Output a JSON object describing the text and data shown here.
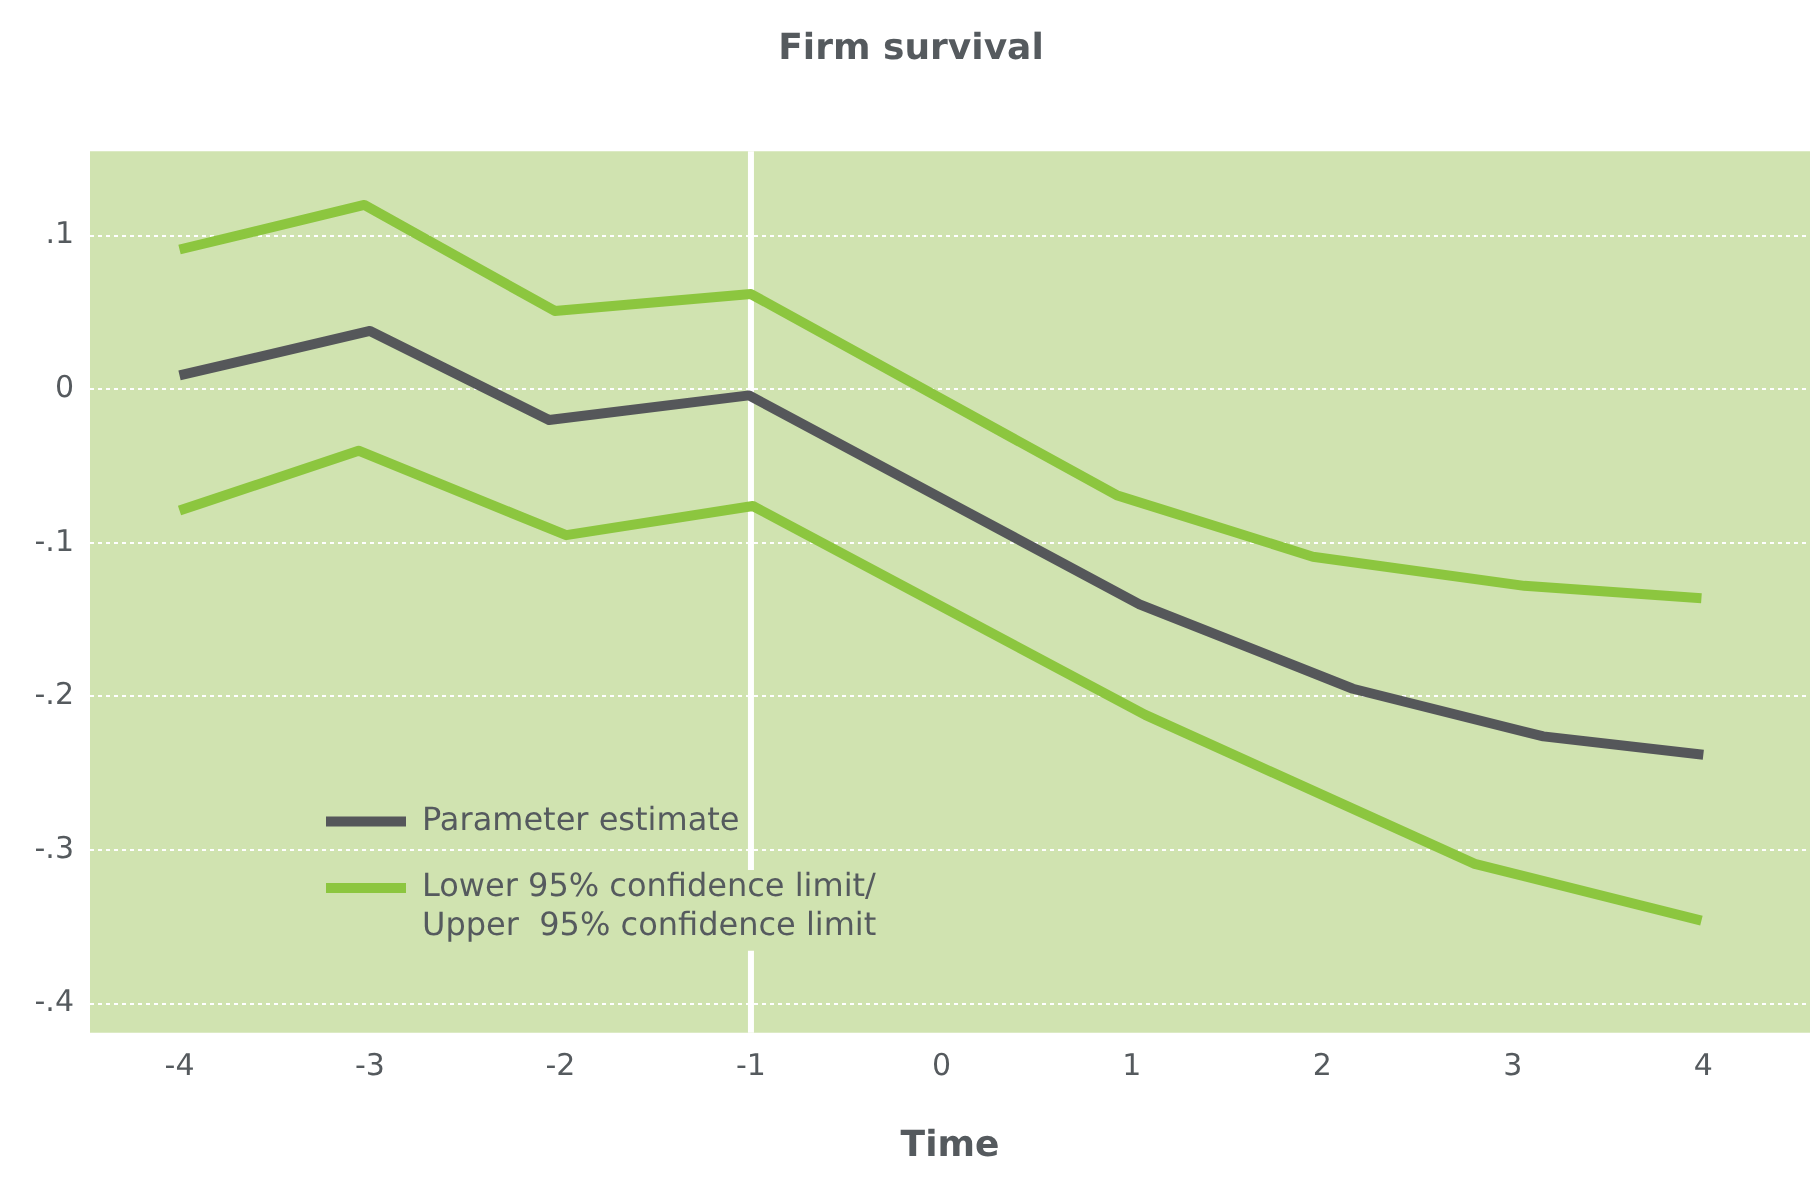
{
  "chart_data": {
    "type": "line",
    "title": "Firm survival",
    "xlabel": "Time",
    "xlim": [
      -4.47,
      4.56
    ],
    "xticks": [
      -4,
      -3,
      -2,
      -1,
      0,
      1,
      2,
      3,
      4
    ],
    "ylim": [
      -0.419,
      0.155
    ],
    "yticks": [
      {
        "value": 0.1,
        "label": ".1"
      },
      {
        "value": 0,
        "label": "0"
      },
      {
        "value": -0.1,
        "label": "-.1"
      },
      {
        "value": -0.2,
        "label": "-.2"
      },
      {
        "value": -0.3,
        "label": "-.3"
      },
      {
        "value": -0.4,
        "label": "-.4"
      }
    ],
    "grid": "y",
    "legend": "bottom left",
    "marker": "none",
    "line_style": "solid",
    "ref_lines": [
      {
        "axis": "x",
        "value": -1,
        "color": "#ffffff"
      }
    ],
    "series": [
      {
        "name": "Parameter estimate",
        "color": "#55575a",
        "x": [
          -4,
          -3,
          -2.06,
          -1.01,
          1.04,
          2.16,
          3.16,
          4
        ],
        "values": [
          0.009,
          0.038,
          -0.02,
          -0.004,
          -0.14,
          -0.195,
          -0.226,
          -0.238
        ]
      },
      {
        "name": "Lower 95% confidence limit/\nUpper  95% confidence limit",
        "color": "#8cc63f",
        "x": [
          -4,
          -3.06,
          -1.97,
          -0.99,
          1.07,
          2.8,
          3.99
        ],
        "values": [
          -0.079,
          -0.04,
          -0.095,
          -0.076,
          -0.212,
          -0.309,
          -0.346
        ]
      },
      {
        "color": "#8cc63f",
        "x": [
          -4,
          -3.03,
          -2.03,
          -1,
          0.92,
          1.95,
          3.06,
          3.99
        ],
        "values": [
          0.091,
          0.12,
          0.051,
          0.062,
          -0.069,
          -0.109,
          -0.128,
          -0.136
        ]
      }
    ]
  }
}
